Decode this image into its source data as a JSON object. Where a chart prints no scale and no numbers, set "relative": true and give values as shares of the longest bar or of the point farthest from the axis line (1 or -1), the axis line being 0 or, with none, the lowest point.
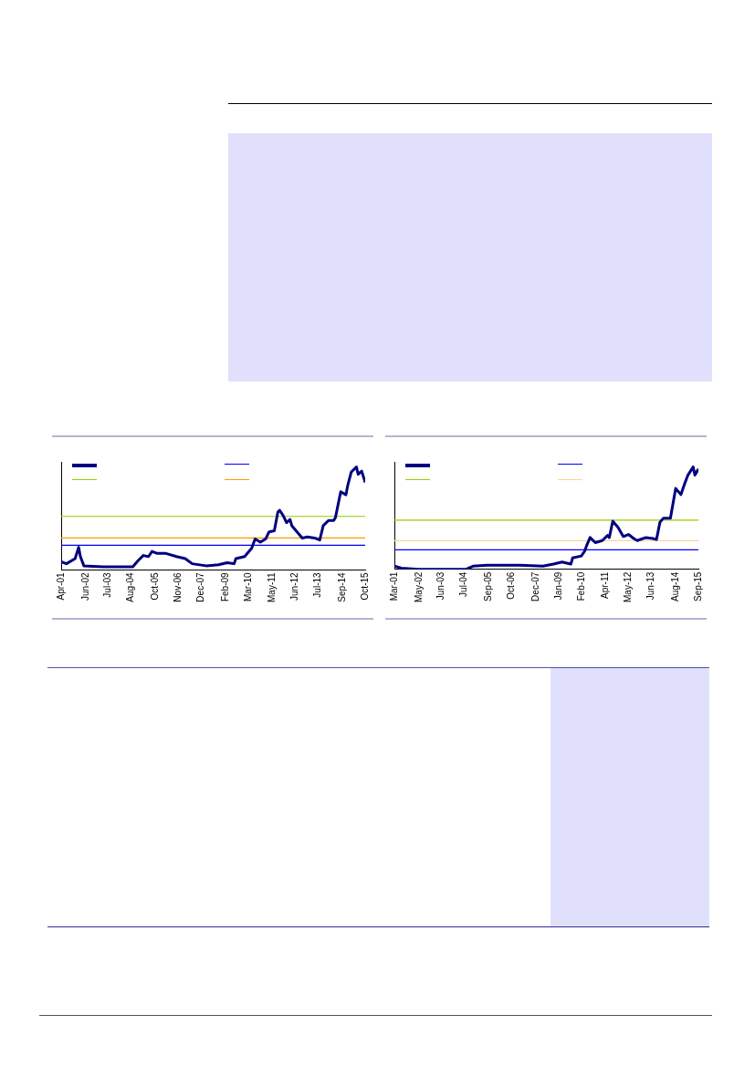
{
  "chart_data": [
    {
      "type": "line",
      "relative": true,
      "grid": false,
      "line_style": "solid",
      "marker": "none",
      "xlim": [
        "2001-04",
        "2015-10"
      ],
      "xticks": [
        {
          "value": "2001-04",
          "label": "Apr-01"
        },
        {
          "value": "2002-06",
          "label": "Jun-02"
        },
        {
          "value": "2003-07",
          "label": "Jul-03"
        },
        {
          "value": "2004-08",
          "label": "Aug-04"
        },
        {
          "value": "2005-10",
          "label": "Oct-05"
        },
        {
          "value": "2006-11",
          "label": "Nov-06"
        },
        {
          "value": "2007-12",
          "label": "Dec-07"
        },
        {
          "value": "2009-02",
          "label": "Feb-09"
        },
        {
          "value": "2010-03",
          "label": "Mar-10"
        },
        {
          "value": "2011-05",
          "label": "May-11"
        },
        {
          "value": "2012-06",
          "label": "Jun-12"
        },
        {
          "value": "2013-07",
          "label": "Jul-13"
        },
        {
          "value": "2014-09",
          "label": "Sep-14"
        },
        {
          "value": "2015-10",
          "label": "Oct-15"
        }
      ],
      "x": [
        "2001-04",
        "2001-07",
        "2001-12",
        "2002-02",
        "2002-03",
        "2002-05",
        "2003-04",
        "2004-09",
        "2004-12",
        "2005-03",
        "2005-06",
        "2005-08",
        "2005-11",
        "2006-04",
        "2006-10",
        "2007-03",
        "2007-07",
        "2008-03",
        "2008-10",
        "2009-03",
        "2009-07",
        "2009-08",
        "2010-01",
        "2010-05",
        "2010-07",
        "2010-10",
        "2011-01",
        "2011-03",
        "2011-06",
        "2011-08",
        "2011-09",
        "2011-11",
        "2012-01",
        "2012-03",
        "2012-04",
        "2012-07",
        "2012-10",
        "2013-01",
        "2013-05",
        "2013-08",
        "2013-10",
        "2014-01",
        "2014-04",
        "2014-05",
        "2014-08",
        "2014-11",
        "2014-12",
        "2015-02",
        "2015-05",
        "2015-06",
        "2015-08",
        "2015-10"
      ],
      "series": [
        {
          "color": "#000080",
          "values": [
            0.08,
            0.06,
            0.11,
            0.22,
            0.13,
            0.04,
            0.03,
            0.03,
            0.09,
            0.14,
            0.13,
            0.18,
            0.16,
            0.16,
            0.13,
            0.11,
            0.06,
            0.04,
            0.05,
            0.07,
            0.06,
            0.11,
            0.13,
            0.21,
            0.3,
            0.27,
            0.3,
            0.37,
            0.38,
            0.56,
            0.58,
            0.53,
            0.46,
            0.49,
            0.43,
            0.37,
            0.31,
            0.32,
            0.31,
            0.29,
            0.43,
            0.48,
            0.48,
            0.51,
            0.76,
            0.73,
            0.82,
            0.95,
            1.0,
            0.93,
            0.96,
            0.85
          ]
        }
      ],
      "ref_lines": [
        {
          "axis": "y",
          "value": 0.24,
          "color": "#0000ff"
        },
        {
          "axis": "y",
          "value": 0.52,
          "color": "#99cc00"
        },
        {
          "axis": "y",
          "value": 0.31,
          "color": "#ff9900"
        }
      ]
    },
    {
      "type": "line",
      "relative": true,
      "grid": false,
      "line_style": "solid",
      "marker": "none",
      "xlim": [
        "2001-03",
        "2015-09"
      ],
      "xticks": [
        {
          "value": "2001-03",
          "label": "Mar-01"
        },
        {
          "value": "2002-05",
          "label": "May-02"
        },
        {
          "value": "2003-06",
          "label": "Jun-03"
        },
        {
          "value": "2004-07",
          "label": "Jul-04"
        },
        {
          "value": "2005-09",
          "label": "Sep-05"
        },
        {
          "value": "2006-10",
          "label": "Oct-06"
        },
        {
          "value": "2007-12",
          "label": "Dec-07"
        },
        {
          "value": "2009-01",
          "label": "Jan-09"
        },
        {
          "value": "2010-02",
          "label": "Feb-10"
        },
        {
          "value": "2011-04",
          "label": "Apr-11"
        },
        {
          "value": "2012-05",
          "label": "May-12"
        },
        {
          "value": "2013-06",
          "label": "Jun-13"
        },
        {
          "value": "2014-08",
          "label": "Aug-14"
        },
        {
          "value": "2015-09",
          "label": "Sep-15"
        }
      ],
      "x": [
        "2001-03",
        "2001-07",
        "2002-05",
        "2004-08",
        "2004-12",
        "2005-08",
        "2007-03",
        "2008-04",
        "2008-10",
        "2009-03",
        "2009-08",
        "2009-09",
        "2010-02",
        "2010-04",
        "2010-05",
        "2010-07",
        "2010-10",
        "2011-02",
        "2011-05",
        "2011-06",
        "2011-08",
        "2011-11",
        "2012-02",
        "2012-05",
        "2012-08",
        "2012-10",
        "2013-03",
        "2013-07",
        "2013-09",
        "2013-11",
        "2014-01",
        "2014-05",
        "2014-08",
        "2014-11",
        "2015-01",
        "2015-03",
        "2015-06",
        "2015-07",
        "2015-09"
      ],
      "series": [
        {
          "color": "#000080",
          "values": [
            0.03,
            0.01,
            0.0,
            0.0,
            0.03,
            0.04,
            0.04,
            0.03,
            0.05,
            0.07,
            0.05,
            0.11,
            0.13,
            0.18,
            0.23,
            0.31,
            0.26,
            0.28,
            0.33,
            0.31,
            0.47,
            0.41,
            0.32,
            0.34,
            0.3,
            0.28,
            0.31,
            0.3,
            0.29,
            0.46,
            0.5,
            0.5,
            0.79,
            0.73,
            0.83,
            0.92,
            1.0,
            0.92,
            0.98
          ]
        }
      ],
      "ref_lines": [
        {
          "axis": "y",
          "value": 0.19,
          "color": "#0000ff"
        },
        {
          "axis": "y",
          "value": 0.48,
          "color": "#99cc00"
        },
        {
          "axis": "y",
          "value": 0.28,
          "color": "#fbd3a0"
        }
      ]
    }
  ]
}
